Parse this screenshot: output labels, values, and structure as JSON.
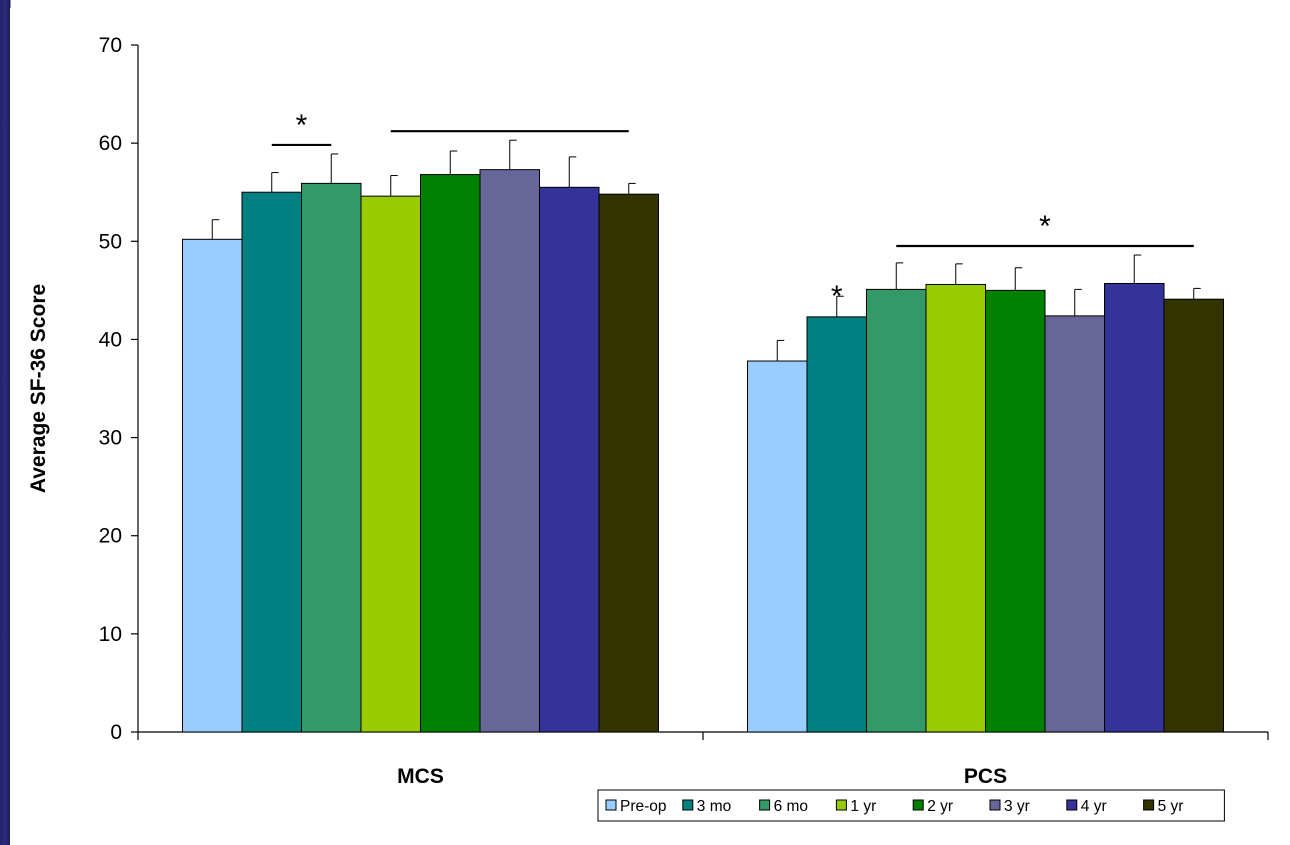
{
  "chart_data": {
    "type": "bar",
    "categories": [
      "MCS",
      "PCS"
    ],
    "ylabel": "Average SF-36 Score",
    "xlabel": "",
    "ylim": [
      0,
      70
    ],
    "yticks": [
      0,
      10,
      20,
      30,
      40,
      50,
      60,
      70
    ],
    "grid": false,
    "legend_position": "bottom-right",
    "series": [
      {
        "name": "Pre-op",
        "color": "#99ccff",
        "values": [
          50.2,
          37.8
        ],
        "errors": [
          2.0,
          2.1
        ]
      },
      {
        "name": "3 mo",
        "color": "#008080",
        "values": [
          55.0,
          42.3
        ],
        "errors": [
          2.0,
          2.1
        ]
      },
      {
        "name": "6 mo",
        "color": "#339966",
        "values": [
          55.9,
          45.1
        ],
        "errors": [
          3.0,
          2.7
        ]
      },
      {
        "name": "1 yr",
        "color": "#99cc00",
        "values": [
          54.6,
          45.6
        ],
        "errors": [
          2.1,
          2.1
        ]
      },
      {
        "name": "2 yr",
        "color": "#008000",
        "values": [
          56.8,
          45.0
        ],
        "errors": [
          2.4,
          2.3
        ]
      },
      {
        "name": "3 yr",
        "color": "#666699",
        "values": [
          57.3,
          42.4
        ],
        "errors": [
          3.0,
          2.7
        ]
      },
      {
        "name": "4 yr",
        "color": "#333399",
        "values": [
          55.5,
          45.7
        ],
        "errors": [
          3.1,
          2.9
        ]
      },
      {
        "name": "5 yr",
        "color": "#333300",
        "values": [
          54.8,
          44.1
        ],
        "errors": [
          1.1,
          1.1
        ]
      }
    ],
    "annotations": [
      {
        "text": "*",
        "category": "MCS",
        "spans_series": [
          "3 mo",
          "6 mo"
        ]
      },
      {
        "text": "",
        "category": "MCS",
        "spans_series": [
          "1 yr",
          "5 yr"
        ]
      },
      {
        "text": "*",
        "category": "PCS",
        "spans_series": [
          "3 mo"
        ]
      },
      {
        "text": "*",
        "category": "PCS",
        "spans_series": [
          "6 mo",
          "5 yr"
        ]
      }
    ]
  }
}
